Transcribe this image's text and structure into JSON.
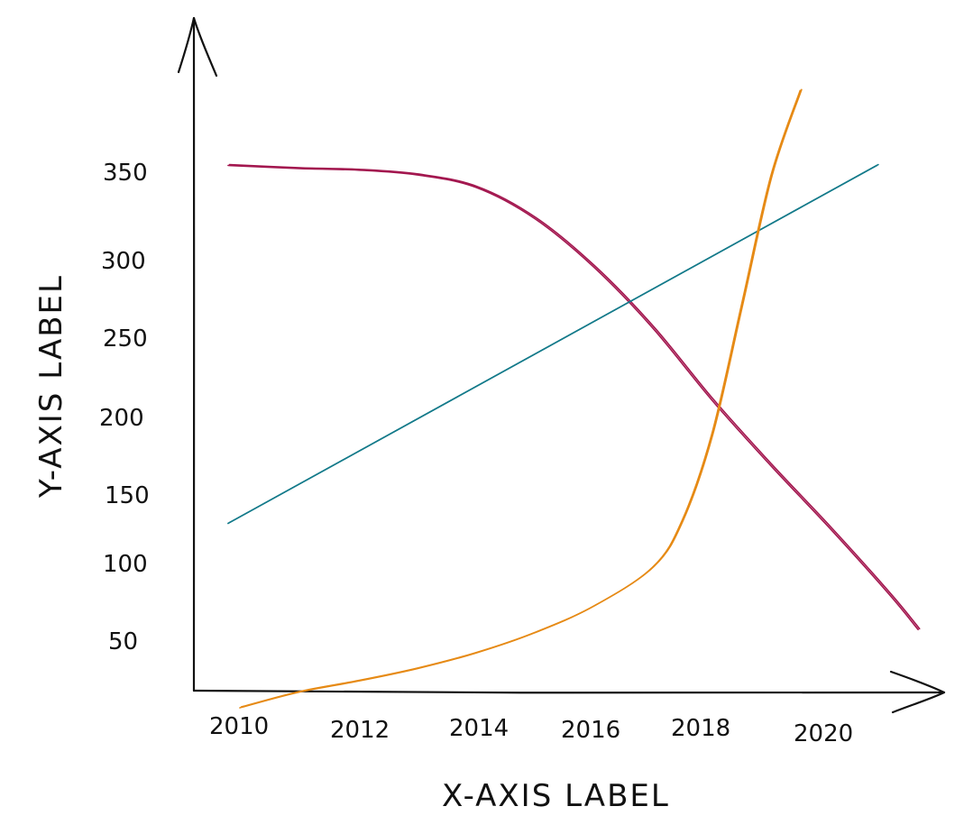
{
  "chart_data": {
    "type": "line",
    "title": "",
    "xlabel": "X-AXIS LABEL",
    "ylabel": "Y-AXIS LABEL",
    "x_ticks": [
      "2010",
      "2012",
      "2014",
      "2016",
      "2018",
      "2020"
    ],
    "y_ticks": [
      "350",
      "300",
      "250",
      "200",
      "150",
      "100",
      "50"
    ],
    "grid": false,
    "legend": "none",
    "series": [
      {
        "color": "#a3174f",
        "x": [
          2009.8,
          2011,
          2012,
          2013,
          2014,
          2015,
          2016,
          2017,
          2018,
          2019,
          2020,
          2021,
          2021.5
        ],
        "values": [
          352,
          350,
          349,
          346,
          338,
          318,
          287,
          248,
          202,
          160,
          120,
          78,
          55
        ]
      },
      {
        "color": "#137a8a",
        "x": [
          2009.8,
          2020.8
        ],
        "values": [
          123,
          352
        ]
      },
      {
        "color": "#e68a15",
        "x": [
          2010,
          2011,
          2012,
          2013,
          2014,
          2015,
          2016,
          2017,
          2017.5,
          2018,
          2018.5,
          2019,
          2019.5
        ],
        "values": [
          5,
          15,
          22,
          30,
          40,
          53,
          70,
          95,
          125,
          180,
          262,
          345,
          400
        ]
      }
    ]
  }
}
